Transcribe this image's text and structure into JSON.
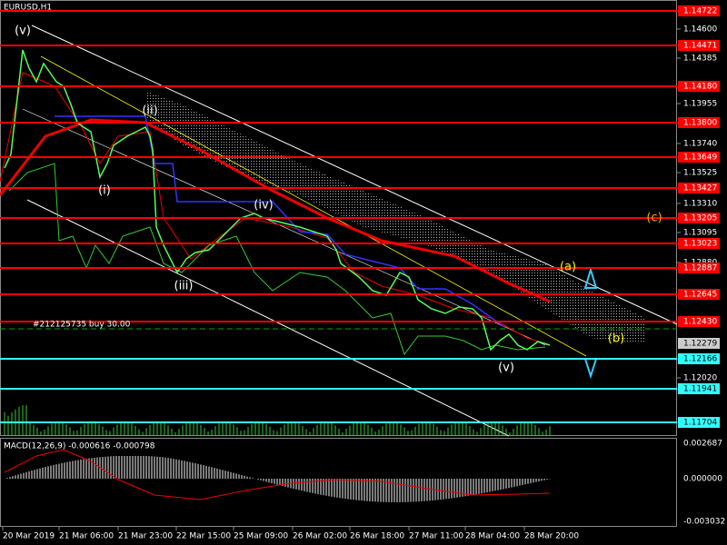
{
  "header": {
    "title": "EURUSD,H1"
  },
  "price_scale": [
    "1.14600",
    "1.14385",
    "1.13955",
    "1.13740",
    "1.13525",
    "1.13310",
    "1.13095",
    "1.12880",
    "1.12020"
  ],
  "red_levels": [
    "1.14722",
    "1.14471",
    "1.14180",
    "1.13800",
    "1.13649",
    "1.13427",
    "1.13205",
    "1.13023",
    "1.12887",
    "1.12645",
    "1.12430"
  ],
  "cyan_levels": [
    "1.12166",
    "1.11941",
    "1.11704"
  ],
  "current_price": "1.12279",
  "order_label": "#212125735 buy 30.00",
  "wave_labels": [
    "(v)",
    "(ii)",
    "(i)",
    "(iii)",
    "(iv)",
    "(v)",
    "(a)",
    "(b)",
    "(c)"
  ],
  "macd": {
    "label": "MACD(12,26,9) -0.000616 -0.000798",
    "scale": [
      "0.002687",
      "0.000000",
      "-0.003032"
    ]
  },
  "time_axis": [
    "20 Mar 2019",
    "21 Mar 06:00",
    "21 Mar 23:00",
    "22 Mar 15:00",
    "25 Mar 09:00",
    "26 Mar 02:00",
    "26 Mar 18:00",
    "27 Mar 11:00",
    "28 Mar 04:00",
    "28 Mar 20:00"
  ]
}
